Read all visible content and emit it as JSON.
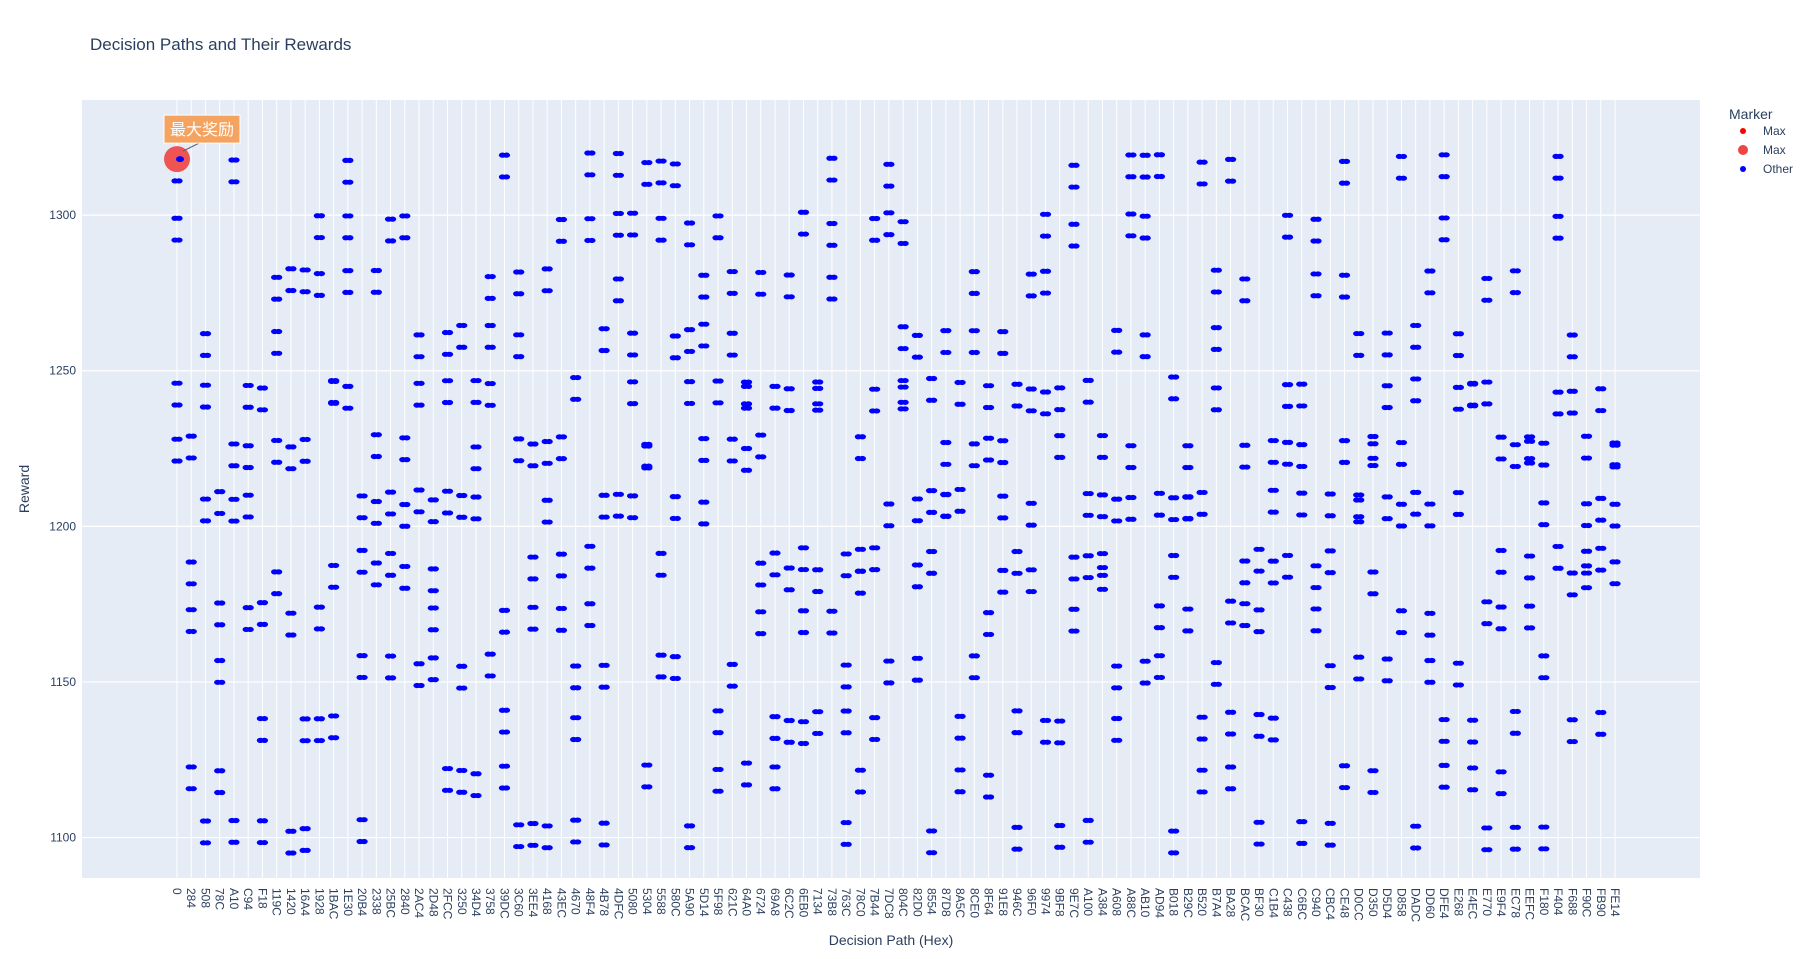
{
  "chart_data": {
    "type": "scatter",
    "title": "Decision Paths and Their Rewards",
    "xlabel": "Decision Path (Hex)",
    "ylabel": "Reward",
    "ylim": [
      1087,
      1337
    ],
    "yticks": [
      1100,
      1150,
      1200,
      1250,
      1300
    ],
    "grid": true,
    "legend": {
      "title": "Marker",
      "placement": "top-right",
      "entries": [
        {
          "name": "Max",
          "color": "#ff0000",
          "symbol": "small-dot"
        },
        {
          "name": "Max",
          "color": "#ef4444",
          "symbol": "large-dot"
        },
        {
          "name": "Other",
          "color": "#0000ff",
          "symbol": "small-dot"
        }
      ]
    },
    "annotation": {
      "text": "最大奖励",
      "x": "0",
      "y": 1318
    },
    "colors": {
      "max_large": "#ef4444",
      "max_small": "#ff0000",
      "other": "#0000ff",
      "annotation_bg": "#f4a460",
      "plot_bg": "#e5ecf6"
    },
    "x_categories": [
      "0",
      "284",
      "508",
      "78C",
      "A10",
      "C94",
      "F18",
      "119C",
      "1420",
      "16A4",
      "1928",
      "1BAC",
      "1E30",
      "20B4",
      "2338",
      "25BC",
      "2840",
      "2AC4",
      "2D48",
      "2FCC",
      "3250",
      "34D4",
      "3758",
      "39DC",
      "3C60",
      "3EE4",
      "4168",
      "43EC",
      "4670",
      "48F4",
      "4B78",
      "4DFC",
      "5080",
      "5304",
      "5588",
      "580C",
      "5A90",
      "5D14",
      "5F98",
      "621C",
      "64A0",
      "6724",
      "69A8",
      "6C2C",
      "6EB0",
      "7134",
      "73B8",
      "763C",
      "78C0",
      "7B44",
      "7DC8",
      "804C",
      "82D0",
      "8554",
      "87D8",
      "8A5C",
      "8CE0",
      "8F64",
      "91E8",
      "946C",
      "96F0",
      "9974",
      "9BF8",
      "9E7C",
      "A100",
      "A384",
      "A608",
      "A88C",
      "AB10",
      "AD94",
      "B018",
      "B29C",
      "B520",
      "B7A4",
      "BA28",
      "BCAC",
      "BF30",
      "C1B4",
      "C438",
      "C6BC",
      "C940",
      "CBC4",
      "CE48",
      "D0CC",
      "D350",
      "D5D4",
      "D858",
      "DADC",
      "DD60",
      "DFE4",
      "E268",
      "E4EC",
      "E770",
      "E9F4",
      "EC78",
      "EEFC",
      "F180",
      "F404",
      "F688",
      "F90C",
      "FB90",
      "FE14"
    ],
    "levels": [
      1311,
      1318,
      1239,
      1246,
      1221,
      1228,
      1292,
      1299,
      1203,
      1210,
      1274,
      1281,
      1185,
      1192,
      1256,
      1263,
      1167,
      1174,
      1238,
      1245,
      1150,
      1157,
      1220,
      1227,
      1132,
      1139,
      1202,
      1209,
      1115,
      1122,
      1097,
      1104,
      1180,
      1187
    ],
    "max": {
      "x": "0",
      "y": 1318
    }
  }
}
